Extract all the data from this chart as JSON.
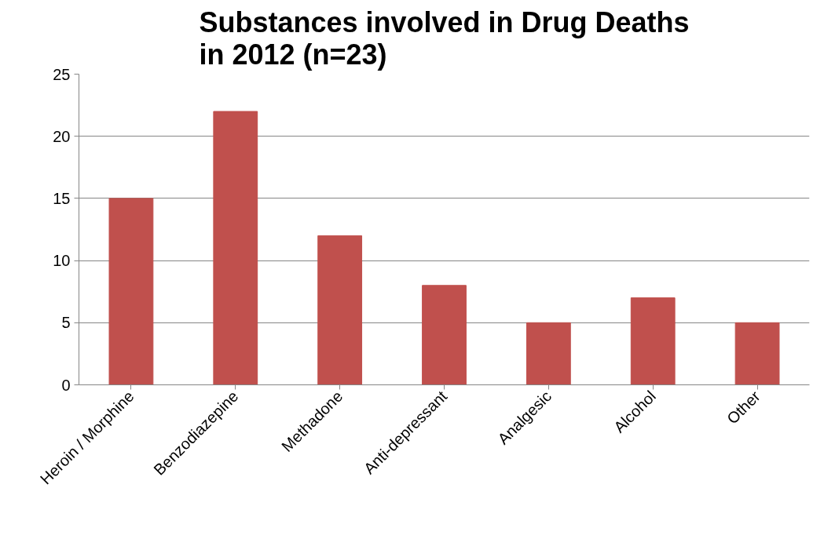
{
  "chart_data": {
    "type": "bar",
    "title": "Substances involved in Drug Deaths in 2012 (n=23)",
    "categories": [
      "Heroin / Morphine",
      "Benzodiazepine",
      "Methadone",
      "Anti-depressant",
      "Analgesic",
      "Alcohol",
      "Other"
    ],
    "values": [
      15,
      22,
      12,
      8,
      5,
      7,
      5
    ],
    "color": "#c0504d",
    "ylim": [
      0,
      25
    ],
    "yticks": [
      0,
      5,
      10,
      15,
      20,
      25
    ],
    "grid": "y"
  }
}
